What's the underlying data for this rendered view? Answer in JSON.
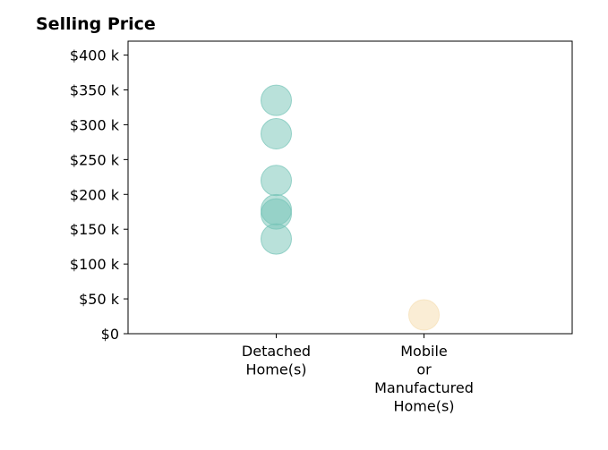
{
  "chart_data": {
    "type": "scatter",
    "title": "Selling Price",
    "xlabel": "",
    "ylabel": "",
    "categories": [
      [
        "Detached",
        "Home(s)"
      ],
      [
        "Mobile",
        "or",
        "Manufactured",
        "Home(s)"
      ]
    ],
    "ylim": [
      0,
      420000
    ],
    "yticks": [
      0,
      50000,
      100000,
      150000,
      200000,
      250000,
      300000,
      350000,
      400000
    ],
    "ytick_labels": [
      "$0",
      "$50 k",
      "$100 k",
      "$150 k",
      "$200 k",
      "$250 k",
      "$300 k",
      "$350 k",
      "$400 k"
    ],
    "grid": false,
    "series": [
      {
        "category_index": 0,
        "color": "#74c3b6",
        "values": [
          335000,
          287000,
          220000,
          178000,
          172000,
          136000
        ]
      },
      {
        "category_index": 1,
        "color": "#f5deb3",
        "values": [
          27000
        ]
      }
    ]
  }
}
